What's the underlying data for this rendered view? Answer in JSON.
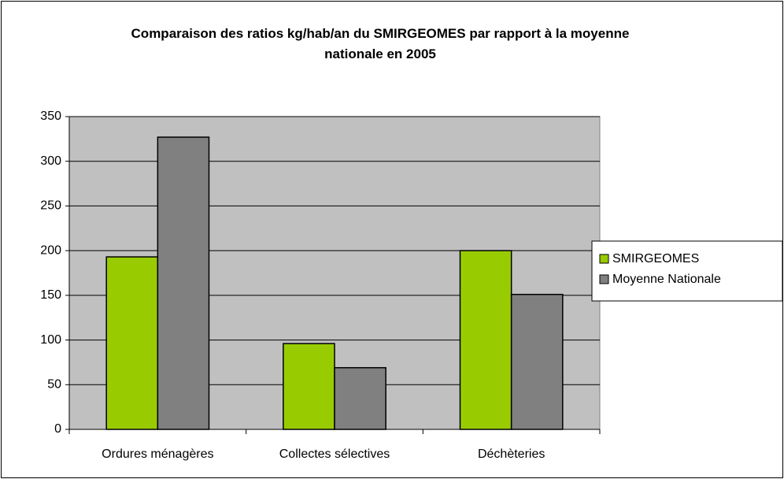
{
  "chart_data": {
    "type": "bar",
    "title": "Comparaison des ratios kg/hab/an du SMIRGEOMES par rapport à la moyenne nationale en 2005",
    "categories": [
      "Ordures ménagères",
      "Collectes sélectives",
      "Déchèteries"
    ],
    "series": [
      {
        "name": "SMIRGEOMES",
        "color": "#99cc00",
        "values": [
          193,
          96,
          200
        ]
      },
      {
        "name": "Moyenne Nationale",
        "color": "#808080",
        "values": [
          327,
          69,
          151
        ]
      }
    ],
    "ylim": [
      0,
      350
    ],
    "yticks": [
      0,
      50,
      100,
      150,
      200,
      250,
      300,
      350
    ],
    "grid": true,
    "legend": "right"
  }
}
